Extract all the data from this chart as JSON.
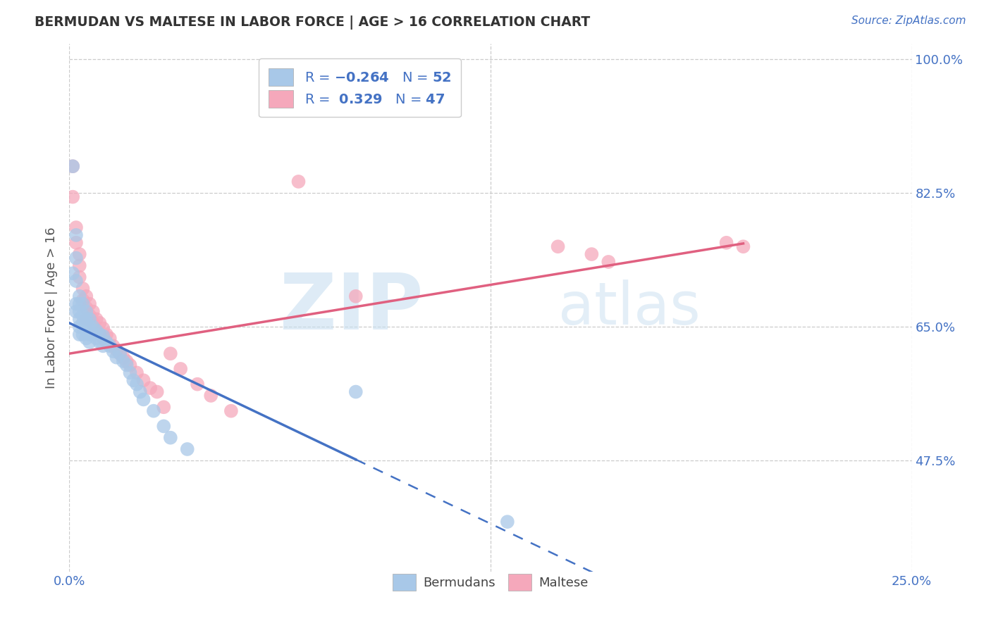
{
  "title": "BERMUDAN VS MALTESE IN LABOR FORCE | AGE > 16 CORRELATION CHART",
  "source": "Source: ZipAtlas.com",
  "ylabel": "In Labor Force | Age > 16",
  "xlim": [
    0.0,
    0.25
  ],
  "ylim": [
    0.33,
    1.02
  ],
  "yticks": [
    0.475,
    0.65,
    0.825,
    1.0
  ],
  "ytick_labels": [
    "47.5%",
    "65.0%",
    "82.5%",
    "100.0%"
  ],
  "xticks": [
    0.0,
    0.25
  ],
  "xtick_labels": [
    "0.0%",
    "25.0%"
  ],
  "bermudan_color": "#a8c8e8",
  "maltese_color": "#f5a8bb",
  "bermudan_line_color": "#4472c4",
  "maltese_line_color": "#e06080",
  "R_bermudan": -0.264,
  "N_bermudan": 52,
  "R_maltese": 0.329,
  "N_maltese": 47,
  "watermark_zip": "ZIP",
  "watermark_atlas": "atlas",
  "bermudan_x": [
    0.001,
    0.001,
    0.002,
    0.002,
    0.002,
    0.002,
    0.002,
    0.003,
    0.003,
    0.003,
    0.003,
    0.003,
    0.003,
    0.004,
    0.004,
    0.004,
    0.004,
    0.005,
    0.005,
    0.005,
    0.005,
    0.005,
    0.006,
    0.006,
    0.006,
    0.006,
    0.007,
    0.007,
    0.008,
    0.008,
    0.009,
    0.009,
    0.01,
    0.01,
    0.011,
    0.012,
    0.013,
    0.014,
    0.015,
    0.016,
    0.017,
    0.018,
    0.019,
    0.02,
    0.021,
    0.022,
    0.025,
    0.028,
    0.03,
    0.035,
    0.085,
    0.13
  ],
  "bermudan_y": [
    0.86,
    0.72,
    0.77,
    0.74,
    0.71,
    0.68,
    0.67,
    0.69,
    0.68,
    0.67,
    0.66,
    0.65,
    0.64,
    0.68,
    0.665,
    0.655,
    0.64,
    0.67,
    0.66,
    0.655,
    0.645,
    0.635,
    0.66,
    0.65,
    0.64,
    0.63,
    0.65,
    0.64,
    0.645,
    0.635,
    0.64,
    0.63,
    0.638,
    0.625,
    0.63,
    0.625,
    0.618,
    0.61,
    0.615,
    0.605,
    0.6,
    0.59,
    0.58,
    0.575,
    0.565,
    0.555,
    0.54,
    0.52,
    0.505,
    0.49,
    0.565,
    0.395
  ],
  "maltese_x": [
    0.001,
    0.001,
    0.002,
    0.002,
    0.003,
    0.003,
    0.003,
    0.004,
    0.004,
    0.005,
    0.005,
    0.005,
    0.006,
    0.006,
    0.007,
    0.007,
    0.008,
    0.008,
    0.009,
    0.009,
    0.01,
    0.01,
    0.011,
    0.012,
    0.013,
    0.014,
    0.015,
    0.016,
    0.017,
    0.018,
    0.02,
    0.022,
    0.024,
    0.026,
    0.028,
    0.03,
    0.033,
    0.038,
    0.042,
    0.048,
    0.068,
    0.085,
    0.145,
    0.155,
    0.16,
    0.195,
    0.2
  ],
  "maltese_y": [
    0.86,
    0.82,
    0.78,
    0.76,
    0.745,
    0.73,
    0.715,
    0.7,
    0.685,
    0.69,
    0.675,
    0.66,
    0.68,
    0.665,
    0.67,
    0.655,
    0.66,
    0.645,
    0.655,
    0.64,
    0.648,
    0.635,
    0.64,
    0.635,
    0.625,
    0.62,
    0.615,
    0.61,
    0.605,
    0.6,
    0.59,
    0.58,
    0.57,
    0.565,
    0.545,
    0.615,
    0.595,
    0.575,
    0.56,
    0.54,
    0.84,
    0.69,
    0.755,
    0.745,
    0.735,
    0.76,
    0.755
  ]
}
